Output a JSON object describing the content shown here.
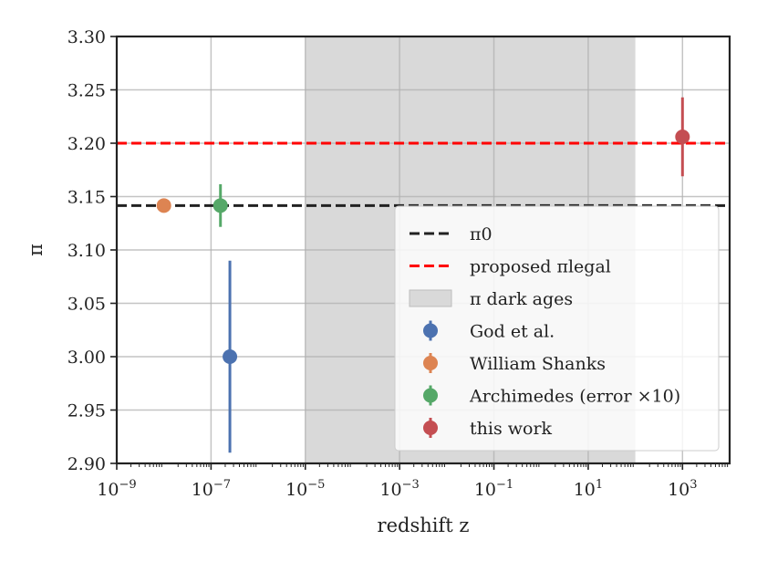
{
  "chart_data": {
    "type": "scatter",
    "xlabel": "redshift z",
    "ylabel": "π",
    "xscale": "log",
    "xlim_exponent": [
      -9,
      4
    ],
    "ylim": [
      2.9,
      3.3
    ],
    "grid": true,
    "legend_placement": "lower-right",
    "y_ticks": [
      "2.90",
      "2.95",
      "3.00",
      "3.05",
      "3.10",
      "3.15",
      "3.20",
      "3.25",
      "3.30"
    ],
    "x_ticks": [
      {
        "exponent": -9,
        "label": "10−9"
      },
      {
        "exponent": -7,
        "label": "10−7"
      },
      {
        "exponent": -5,
        "label": "10−5"
      },
      {
        "exponent": -3,
        "label": "10−3"
      },
      {
        "exponent": -1,
        "label": "10−1"
      },
      {
        "exponent": 1,
        "label": "101"
      },
      {
        "exponent": 3,
        "label": "103"
      }
    ],
    "hlines": [
      {
        "name": "π0",
        "y": 3.1416,
        "color": "#222222",
        "style": "dashed"
      },
      {
        "name": "proposed πlegal",
        "y": 3.2,
        "color": "#ff0000",
        "style": "dashed"
      }
    ],
    "span": {
      "name": "π dark ages",
      "x_from_exponent": -5,
      "x_to_exponent": 2,
      "color": "#d9d9d9"
    },
    "series": [
      {
        "name": "God et al.",
        "x_exponent": -6.6,
        "y": 3.0,
        "yerr": 0.09,
        "color": "#4c72b0"
      },
      {
        "name": "William Shanks",
        "x_exponent": -8.0,
        "y": 3.1416,
        "yerr": 0,
        "color": "#dd8452"
      },
      {
        "name": "Archimedes (error ×10)",
        "x_exponent": -6.8,
        "y": 3.1416,
        "yerr": 0.02,
        "color": "#55a868"
      },
      {
        "name": "this work",
        "x_exponent": 3.0,
        "y": 3.206,
        "yerr": 0.037,
        "color": "#c44e52"
      }
    ]
  }
}
